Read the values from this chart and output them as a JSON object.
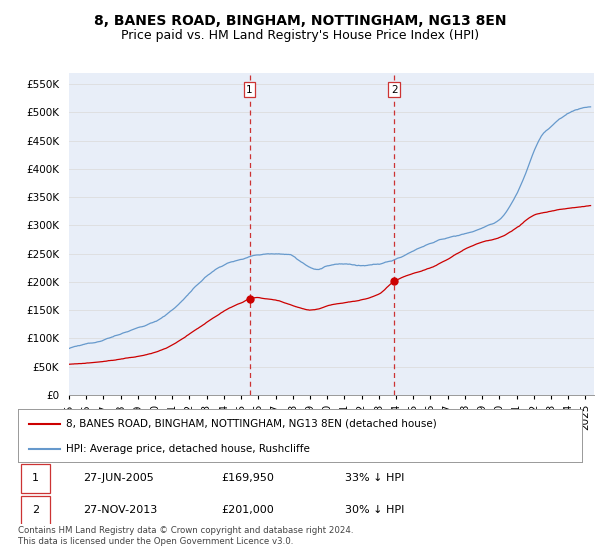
{
  "title": "8, BANES ROAD, BINGHAM, NOTTINGHAM, NG13 8EN",
  "subtitle": "Price paid vs. HM Land Registry's House Price Index (HPI)",
  "ylabel_ticks": [
    "£0",
    "£50K",
    "£100K",
    "£150K",
    "£200K",
    "£250K",
    "£300K",
    "£350K",
    "£400K",
    "£450K",
    "£500K",
    "£550K"
  ],
  "ytick_values": [
    0,
    50000,
    100000,
    150000,
    200000,
    250000,
    300000,
    350000,
    400000,
    450000,
    500000,
    550000
  ],
  "ylim": [
    0,
    570000
  ],
  "xlim_start": 1995.0,
  "xlim_end": 2025.5,
  "marker1_x": 2005.487,
  "marker1_y": 169950,
  "marker2_x": 2013.9,
  "marker2_y": 201000,
  "marker1_label": "1",
  "marker2_label": "2",
  "line_color_red": "#cc0000",
  "line_color_blue": "#6699cc",
  "vline_color": "#cc3333",
  "grid_color": "#dddddd",
  "background_color": "#e8eef8",
  "legend_label_red": "8, BANES ROAD, BINGHAM, NOTTINGHAM, NG13 8EN (detached house)",
  "legend_label_blue": "HPI: Average price, detached house, Rushcliffe",
  "table_row1": [
    "1",
    "27-JUN-2005",
    "£169,950",
    "33% ↓ HPI"
  ],
  "table_row2": [
    "2",
    "27-NOV-2013",
    "£201,000",
    "30% ↓ HPI"
  ],
  "footnote": "Contains HM Land Registry data © Crown copyright and database right 2024.\nThis data is licensed under the Open Government Licence v3.0.",
  "title_fontsize": 10,
  "subtitle_fontsize": 9,
  "tick_fontsize": 7.5,
  "legend_fontsize": 7.5,
  "table_fontsize": 8
}
